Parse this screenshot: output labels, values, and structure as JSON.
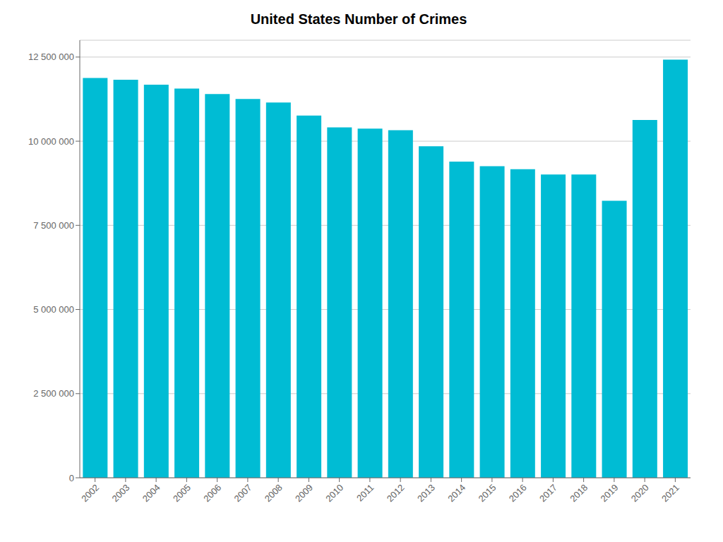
{
  "chart_data": {
    "type": "bar",
    "title": "United States Number of Crimes",
    "categories": [
      "2002",
      "2003",
      "2004",
      "2005",
      "2006",
      "2007",
      "2008",
      "2009",
      "2010",
      "2011",
      "2012",
      "2013",
      "2014",
      "2015",
      "2016",
      "2017",
      "2018",
      "2019",
      "2020",
      "2021"
    ],
    "values": [
      11877218,
      11826538,
      11679474,
      11565499,
      11401511,
      11251828,
      11149927,
      10762956,
      10408742,
      10374035,
      10325170,
      9850445,
      9395920,
      9256372,
      9167979,
      9009879,
      9009268,
      8228255,
      10630507,
      12422200
    ],
    "color": "#00bcd4",
    "ylim": [
      0,
      13000000
    ],
    "yticks": [
      0,
      {
        "value": 2500000,
        "label": "2 500 000"
      },
      {
        "value": 5000000,
        "label": "5 000 000"
      },
      {
        "value": 7500000,
        "label": "7 500 000"
      },
      {
        "value": 10000000,
        "label": "10 000 000"
      },
      {
        "value": 12500000,
        "label": "12 500 000"
      }
    ],
    "grid": true
  }
}
